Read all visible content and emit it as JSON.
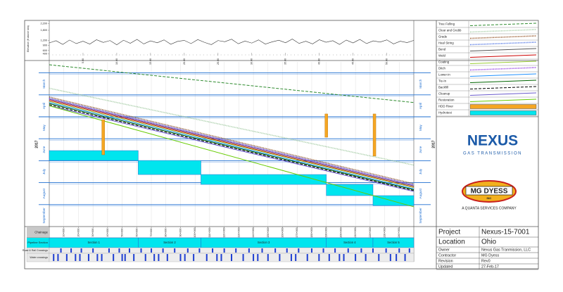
{
  "chart_data": [
    {
      "type": "line",
      "axis_label": "Elevation (ft above sea)",
      "color": "#333333",
      "xlim": [
        0,
        54
      ],
      "ylim": [
        300,
        2300
      ],
      "yticks": [
        400,
        600,
        900,
        {
          "value": 1200,
          "label": "1,200"
        },
        {
          "value": 1800,
          "label": "1,800"
        },
        {
          "value": 2200,
          "label": "2,200"
        }
      ],
      "xticks": [
        {
          "value": 5,
          "label": "5.00"
        },
        {
          "value": 10,
          "label": "10.00"
        },
        {
          "value": 15,
          "label": "15.00"
        },
        {
          "value": 20,
          "label": "20.00"
        },
        {
          "value": 25,
          "label": "25.00"
        },
        {
          "value": 30,
          "label": "30.00"
        },
        {
          "value": 35,
          "label": "35.00"
        },
        {
          "value": 40,
          "label": "40.00"
        },
        {
          "value": 45,
          "label": "45.00"
        },
        {
          "value": 50,
          "label": "50.00"
        }
      ],
      "x": [
        0,
        1,
        2,
        3,
        4,
        5,
        6,
        7,
        8,
        9,
        10,
        11,
        12,
        13,
        14,
        15,
        16,
        17,
        18,
        19,
        20,
        21,
        22,
        23,
        24,
        25,
        26,
        27,
        28,
        29,
        30,
        31,
        32,
        33,
        34,
        35,
        36,
        37,
        38,
        39,
        40,
        41,
        42,
        43,
        44,
        45,
        46,
        47,
        48,
        49,
        50,
        51,
        52,
        53,
        54
      ],
      "values": [
        1050,
        1180,
        960,
        1220,
        1010,
        1150,
        980,
        1240,
        1080,
        1190,
        940,
        1210,
        1030,
        1260,
        990,
        1170,
        1060,
        1230,
        970,
        1140,
        1200,
        1010,
        1250,
        1080,
        950,
        1190,
        1120,
        1270,
        1000,
        1160,
        1040,
        1230,
        980,
        1110,
        1210,
        1060,
        1280,
        1020,
        1150,
        990,
        1240,
        1090,
        1180,
        960,
        1220,
        1050,
        1260,
        1010,
        1170,
        1100,
        1230,
        990,
        1150,
        1070,
        1200
      ]
    },
    {
      "type": "linear-schedule",
      "year": "2017",
      "months": [
        "March",
        "April",
        "May",
        "June",
        "July",
        "August",
        "September"
      ],
      "xlim": [
        0,
        250
      ],
      "ylim": [
        0,
        7.5
      ],
      "grid": true,
      "chainage_label": "Chainage",
      "xticks": [
        {
          "value": 10,
          "label": "10+000"
        },
        {
          "value": 20,
          "label": "20+000"
        },
        {
          "value": 30,
          "label": "30+000"
        },
        {
          "value": 40,
          "label": "40+000"
        },
        {
          "value": 50,
          "label": "50+000"
        },
        {
          "value": 60,
          "label": "60+000"
        },
        {
          "value": 70,
          "label": "70+000"
        },
        {
          "value": 80,
          "label": "80+000"
        },
        {
          "value": 90,
          "label": "90+000"
        },
        {
          "value": 100,
          "label": "100+000"
        },
        {
          "value": 110,
          "label": "110+000"
        },
        {
          "value": 120,
          "label": "120+000"
        },
        {
          "value": 130,
          "label": "130+000"
        },
        {
          "value": 140,
          "label": "140+000"
        },
        {
          "value": 150,
          "label": "150+000"
        },
        {
          "value": 160,
          "label": "160+000"
        },
        {
          "value": 170,
          "label": "170+000"
        },
        {
          "value": 180,
          "label": "180+000"
        },
        {
          "value": 190,
          "label": "190+000"
        },
        {
          "value": 200,
          "label": "200+000"
        },
        {
          "value": 210,
          "label": "210+000"
        },
        {
          "value": 220,
          "label": "220+000"
        },
        {
          "value": 230,
          "label": "230+000"
        },
        {
          "value": 240,
          "label": "240+000"
        }
      ],
      "series": [
        {
          "name": "Tree Felling",
          "color": "#2e8b2e",
          "style": "dashed",
          "x": [
            0,
            250
          ],
          "values": [
            0.13,
            1.85
          ]
        },
        {
          "name": "Clear and Grubb",
          "color": "#9cc79c",
          "style": "dotted",
          "x": [
            0,
            250
          ],
          "values": [
            1.2,
            4.7
          ]
        },
        {
          "name": "Grade",
          "color": "#8b4513",
          "style": "dotted",
          "x": [
            0,
            250
          ],
          "values": [
            1.6,
            5.55
          ]
        },
        {
          "name": "Haul String",
          "color": "#4169e1",
          "style": "dotted",
          "x": [
            0,
            250
          ],
          "values": [
            1.65,
            5.6
          ]
        },
        {
          "name": "Bend",
          "color": "#555555",
          "style": "solid",
          "x": [
            0,
            250
          ],
          "values": [
            1.7,
            5.65
          ]
        },
        {
          "name": "Weld",
          "color": "#cc0000",
          "style": "solid",
          "x": [
            0,
            250
          ],
          "values": [
            1.75,
            5.7
          ]
        },
        {
          "name": "Coating",
          "color": "#9acd32",
          "style": "solid",
          "x": [
            0,
            250
          ],
          "values": [
            1.8,
            5.72
          ]
        },
        {
          "name": "Ditch",
          "color": "#8a2be2",
          "style": "dotted",
          "x": [
            0,
            250
          ],
          "values": [
            1.68,
            5.62
          ]
        },
        {
          "name": "Lower-in",
          "color": "#1e90ff",
          "style": "solid",
          "x": [
            0,
            250
          ],
          "values": [
            1.85,
            5.78
          ]
        },
        {
          "name": "Tie-In",
          "color": "#006400",
          "style": "solid",
          "x": [
            0,
            250
          ],
          "values": [
            1.9,
            5.82
          ]
        },
        {
          "name": "Backfill",
          "color": "#000000",
          "style": "dashed",
          "x": [
            0,
            250
          ],
          "values": [
            1.95,
            5.86
          ]
        },
        {
          "name": "Cleanup",
          "color": "#6a5acd",
          "style": "solid",
          "x": [
            0,
            250
          ],
          "values": [
            2.0,
            5.9
          ]
        },
        {
          "name": "Restoration",
          "color": "#66cc00",
          "style": "solid",
          "x": [
            0,
            250
          ],
          "values": [
            2.0,
            6.6
          ]
        }
      ],
      "hdd": {
        "name": "HDD River",
        "color": "#f5a623",
        "x": [
          37,
          190,
          223
        ],
        "y_start": [
          2.63,
          2.37,
          2.37
        ],
        "y_end": [
          4.23,
          3.43,
          4.29
        ]
      },
      "hydrotest": {
        "name": "Hydrotest",
        "color": "#00e5ee",
        "x_start": [
          0,
          61,
          104,
          190,
          222
        ],
        "x_end": [
          61,
          104,
          190,
          222,
          250
        ],
        "y_start": [
          4.04,
          4.49,
          5.13,
          5.58,
          6.09
        ],
        "y_end": [
          4.49,
          5.13,
          5.58,
          6.09,
          6.54
        ]
      },
      "sections": {
        "label": "Pipeline Section",
        "names": [
          "Section 1",
          "Section 2",
          "Section 3",
          "Section 4",
          "Section 5"
        ],
        "x_start": [
          0,
          61,
          104,
          190,
          222
        ],
        "x_end": [
          61,
          104,
          190,
          222,
          250
        ]
      },
      "road_crossings": {
        "label": "Road & Rail Crossings",
        "x": [
          8,
          15,
          22,
          30,
          41,
          48,
          55,
          63,
          70,
          78,
          86,
          95,
          103,
          112,
          120,
          128,
          137,
          146,
          155,
          163,
          171,
          180,
          188,
          196,
          205,
          214,
          222,
          231,
          240,
          247
        ]
      },
      "water_crossings": {
        "label": "Water crossings",
        "x": [
          3,
          6,
          12,
          18,
          21,
          27,
          33,
          36,
          44,
          50,
          52,
          58,
          66,
          72,
          75,
          81,
          90,
          93,
          99,
          108,
          115,
          118,
          125,
          133,
          140,
          143,
          150,
          158,
          166,
          169,
          177,
          185,
          192,
          199,
          202,
          210,
          217,
          226,
          234,
          238,
          244
        ]
      }
    }
  ],
  "logos": {
    "nexus": "NEXUS",
    "nexus_sub": "GAS TRANSMISSION",
    "mgdyess": "MG DYESS",
    "mgdyess_inc": "INC",
    "quanta": "A QUANTA SERVICES COMPANY"
  },
  "info": [
    [
      "Project",
      "Nexus-15-7001"
    ],
    [
      "Location",
      "Ohio"
    ],
    [
      "Owner",
      "Nexus Gas Tranmission, LLC"
    ],
    [
      "Contractor",
      "MG Dyess"
    ],
    [
      "Revision",
      "Rev0"
    ],
    [
      "Updated",
      "27-Feb-17"
    ]
  ]
}
